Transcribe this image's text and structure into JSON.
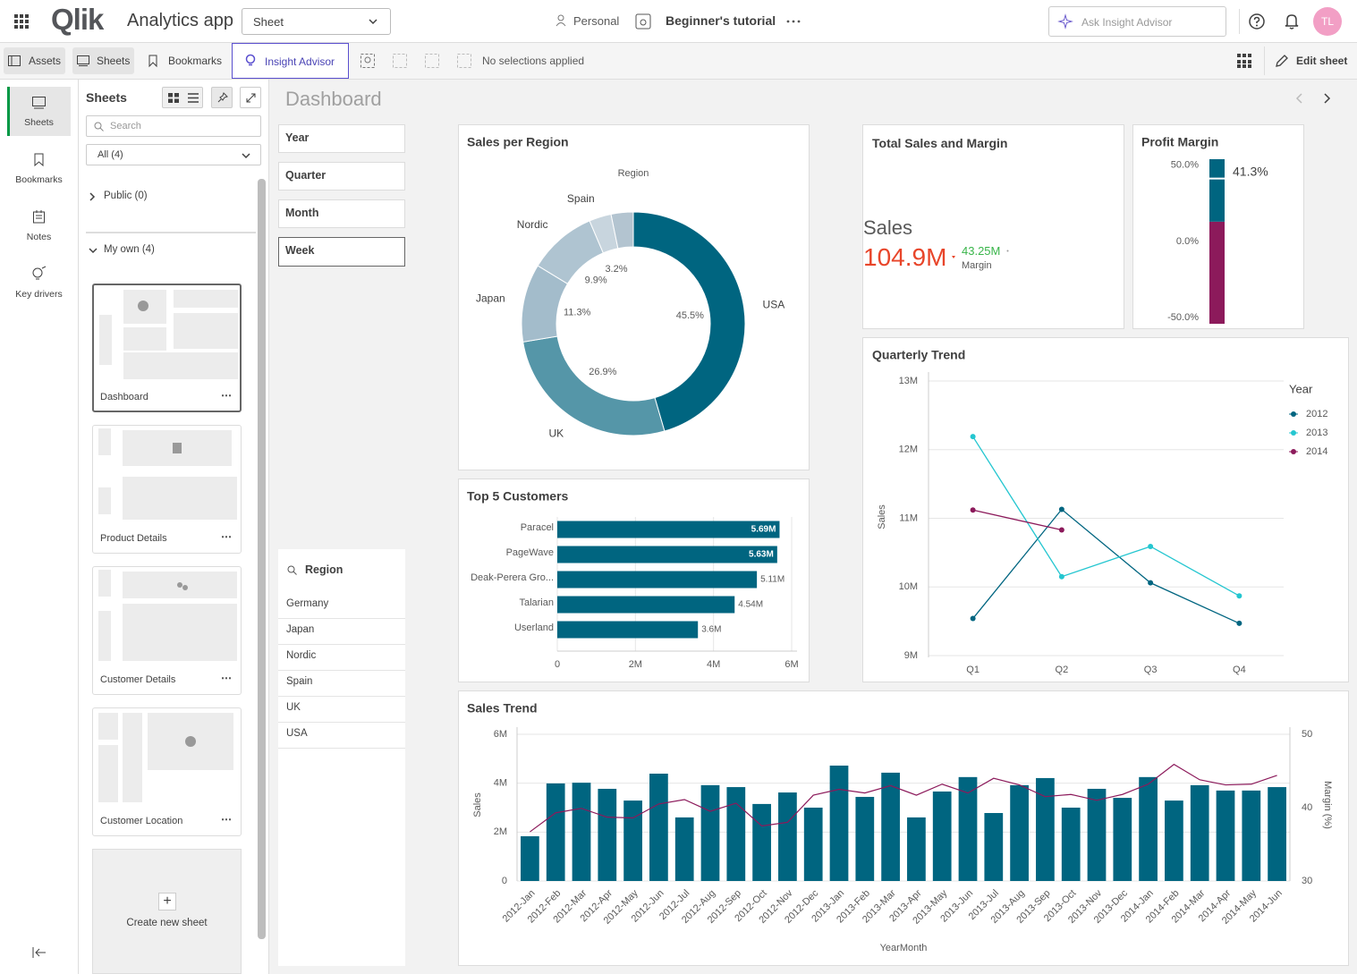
{
  "header": {
    "logo": "Qlik",
    "app_name": "Analytics app",
    "sheet_dropdown": "Sheet",
    "space": "Personal",
    "tutorial": "Beginner's tutorial",
    "search_placeholder": "Ask Insight Advisor",
    "avatar": "TL"
  },
  "toolbar": {
    "assets": "Assets",
    "sheets": "Sheets",
    "bookmarks": "Bookmarks",
    "insight_advisor": "Insight Advisor",
    "selections": "No selections applied",
    "edit_sheet": "Edit sheet"
  },
  "rail": [
    "Sheets",
    "Bookmarks",
    "Notes",
    "Key drivers"
  ],
  "sheets_panel": {
    "title": "Sheets",
    "search_placeholder": "Search",
    "filter": "All (4)",
    "public": "Public (0)",
    "my_own": "My own (4)",
    "sheets": [
      "Dashboard",
      "Product Details",
      "Customer Details",
      "Customer Location"
    ],
    "create": "Create new sheet"
  },
  "sheet_title": "Dashboard",
  "filters": [
    "Year",
    "Quarter",
    "Month",
    "Week"
  ],
  "region_list": {
    "title": "Region",
    "items": [
      "Germany",
      "Japan",
      "Nordic",
      "Spain",
      "UK",
      "USA"
    ]
  },
  "kpi": {
    "title": "Total Sales and Margin",
    "label": "Sales",
    "value": "104.9M",
    "secondary_value": "43.25M",
    "secondary_label": "Margin"
  },
  "chart_data": [
    {
      "type": "pie",
      "title": "Sales per Region",
      "legend_title": "Region",
      "categories": [
        "USA",
        "UK",
        "Japan",
        "Nordic",
        "Spain",
        null
      ],
      "values": [
        45.5,
        26.9,
        11.3,
        9.9,
        3.2,
        3.2
      ],
      "value_labels": [
        "45.5%",
        "26.9%",
        "11.3%",
        "9.9%",
        "3.2%",
        null
      ],
      "colors": [
        "#006580",
        "#5596a8",
        "#a3bccb",
        "#afc4d1",
        "#c8d5de",
        "#b3c4d0"
      ]
    },
    {
      "type": "gauge",
      "title": "Profit Margin",
      "value": 41.3,
      "value_label": "41.3%",
      "ylim": [
        -54,
        54
      ],
      "yticks": [
        {
          "value": 50,
          "label": "50.0%"
        },
        {
          "value": 0,
          "label": "0.0%"
        },
        {
          "value": -50,
          "label": "-50.0%"
        }
      ],
      "bands": [
        {
          "from": -54,
          "to": 13,
          "color": "#8c1a5b"
        },
        {
          "from": 13,
          "to": 54,
          "color": "#006580"
        }
      ]
    },
    {
      "type": "line",
      "title": "Quarterly Trend",
      "y_label": "Sales",
      "legend_title": "Year",
      "grid": true,
      "categories": [
        "Q1",
        "Q2",
        "Q3",
        "Q4"
      ],
      "ylim": [
        9000000,
        13000000
      ],
      "yticks": [
        {
          "value": 9000000,
          "label": "9M"
        },
        {
          "value": 10000000,
          "label": "10M"
        },
        {
          "value": 11000000,
          "label": "11M"
        },
        {
          "value": 12000000,
          "label": "12M"
        },
        {
          "value": 13000000,
          "label": "13M"
        }
      ],
      "series": [
        {
          "name": "2012",
          "color": "#006580",
          "values": [
            9540000,
            11130000,
            10060000,
            9470000
          ]
        },
        {
          "name": "2013",
          "color": "#24c6d0",
          "values": [
            12190000,
            10150000,
            10590000,
            9870000
          ]
        },
        {
          "name": "2014",
          "color": "#8c1a5b",
          "values": [
            11120000,
            10830000,
            null,
            null
          ]
        }
      ]
    },
    {
      "type": "bar",
      "title": "Top 5 Customers",
      "orientation": "horizontal",
      "color": "#006580",
      "grid": true,
      "categories": [
        "Paracel",
        "PageWave",
        "Deak-Perera Gro...",
        "Talarian",
        "Userland"
      ],
      "values": [
        5690000,
        5630000,
        5110000,
        4540000,
        3600000
      ],
      "value_labels": [
        "5.69M",
        "5.63M",
        "5.11M",
        "4.54M",
        "3.6M"
      ],
      "xlim": [
        0,
        6000000
      ],
      "xticks": [
        0,
        {
          "value": 2000000,
          "label": "2M"
        },
        {
          "value": 4000000,
          "label": "4M"
        },
        {
          "value": 6000000,
          "label": "6M"
        }
      ]
    },
    {
      "type": "combo",
      "title": "Sales Trend",
      "y_label": "Sales",
      "y2_label": "Margin (%)",
      "x_label": "YearMonth",
      "grid": true,
      "categories": [
        "2012-Jan",
        "2012-Feb",
        "2012-Mar",
        "2012-Apr",
        "2012-May",
        "2012-Jun",
        "2012-Jul",
        "2012-Aug",
        "2012-Sep",
        "2012-Oct",
        "2012-Nov",
        "2012-Dec",
        "2013-Jan",
        "2013-Feb",
        "2013-Mar",
        "2013-Apr",
        "2013-May",
        "2013-Jun",
        "2013-Jul",
        "2013-Aug",
        "2013-Sep",
        "2013-Oct",
        "2013-Nov",
        "2013-Dec",
        "2014-Jan",
        "2014-Feb",
        "2014-Mar",
        "2014-Apr",
        "2014-May",
        "2014-Jun"
      ],
      "ylim": [
        0,
        6000000
      ],
      "yticks": [
        0,
        {
          "value": 2000000,
          "label": "2M"
        },
        {
          "value": 4000000,
          "label": "4M"
        },
        {
          "value": 6000000,
          "label": "6M"
        }
      ],
      "y2lim": [
        30,
        50
      ],
      "y2ticks": [
        30,
        40,
        50
      ],
      "series": [
        {
          "name": "Sales",
          "kind": "bar",
          "color": "#006580",
          "values": [
            1830000,
            3990000,
            4020000,
            3770000,
            3290000,
            4390000,
            2600000,
            3920000,
            3840000,
            3150000,
            3620000,
            3000000,
            4720000,
            3440000,
            4430000,
            2600000,
            3660000,
            4250000,
            2780000,
            3920000,
            4210000,
            3000000,
            3770000,
            3400000,
            4250000,
            3290000,
            3920000,
            3700000,
            3700000,
            3840000
          ]
        },
        {
          "name": "Margin (%)",
          "kind": "line",
          "axis": "y2",
          "color": "#8c1a5b",
          "values": [
            36.7,
            39.3,
            39.9,
            38.7,
            38.6,
            40.5,
            41.1,
            39.5,
            40.6,
            37.5,
            38.0,
            41.7,
            42.5,
            42.0,
            43.0,
            41.7,
            43.2,
            42.0,
            44.0,
            43.1,
            41.5,
            41.8,
            41.0,
            41.8,
            43.2,
            45.9,
            43.8,
            43.1,
            43.2,
            44.4
          ]
        }
      ]
    }
  ]
}
